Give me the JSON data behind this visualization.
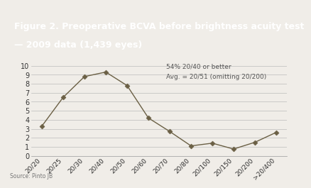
{
  "title_line1": "Figure 2. Preoperative BCVA before brightness acuity test",
  "title_line2": "— 2009 data (1,439 eyes)",
  "title_bg_color": "#857b6a",
  "title_text_color": "#ffffff",
  "annotation_line1": "54% 20/40 or better",
  "annotation_line2": "Avg. = 20/51 (omitting 20/200)",
  "source_text": "Source: Pinto JB",
  "categories": [
    "20/20",
    "20/25",
    "20/30",
    "20/40",
    "20/50",
    "20/60",
    "20/70",
    "20/80",
    "20/100",
    "20/150",
    "20/200",
    ">20/400"
  ],
  "values": [
    3.3,
    6.5,
    8.8,
    9.3,
    7.8,
    4.2,
    2.7,
    1.1,
    1.4,
    0.75,
    1.5,
    2.6
  ],
  "line_color": "#6b6045",
  "marker_color": "#6b6045",
  "bg_color": "#f0ede8",
  "plot_bg_color": "#f0ede8",
  "grid_color": "#bbbbbb",
  "ylim": [
    0,
    10
  ],
  "yticks": [
    0,
    1,
    2,
    3,
    4,
    5,
    6,
    7,
    8,
    9,
    10
  ],
  "title_fontsize": 9,
  "ylabel_fontsize": 7,
  "xlabel_fontsize": 6.5,
  "annotation_fontsize": 6.5,
  "source_fontsize": 5.5
}
